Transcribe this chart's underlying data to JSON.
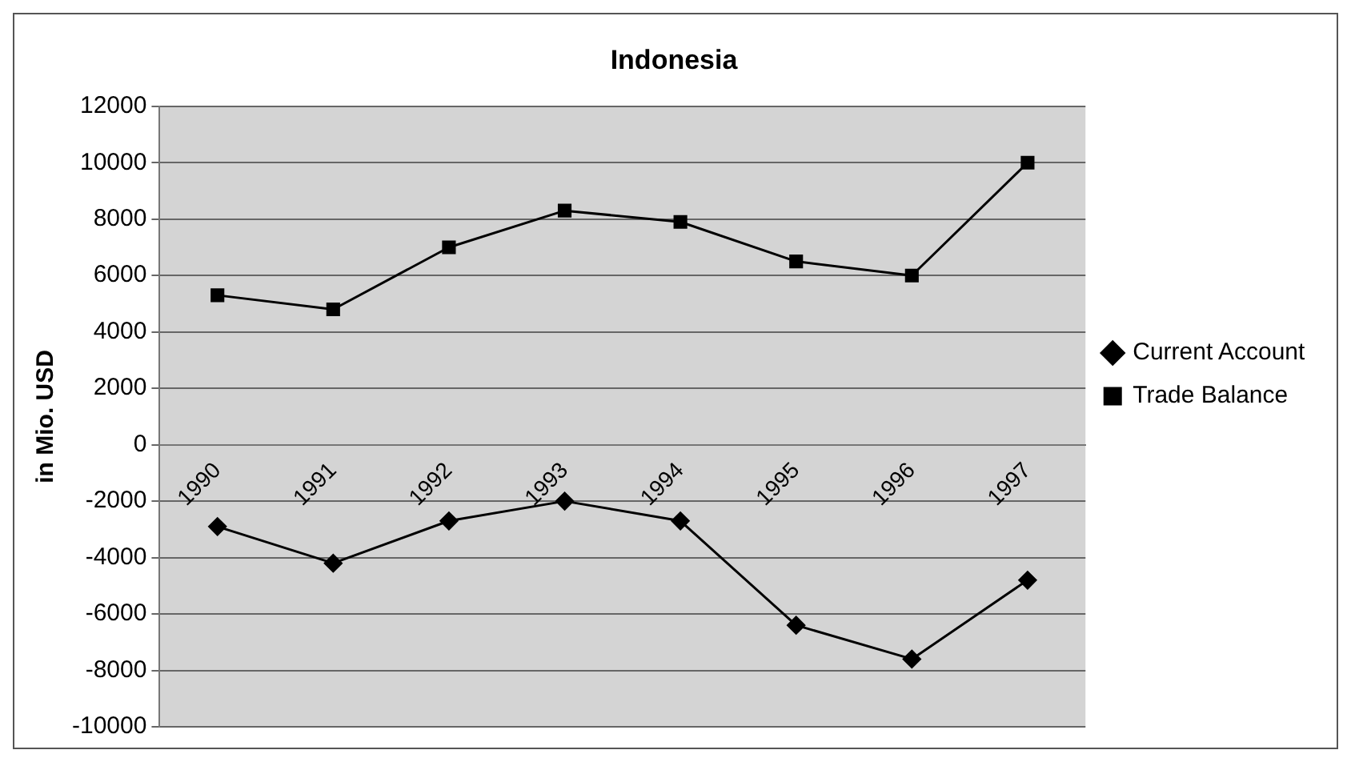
{
  "chart_data": {
    "type": "line",
    "title": "Indonesia",
    "ylabel": "in Mio. USD",
    "categories": [
      "1990",
      "1991",
      "1992",
      "1993",
      "1994",
      "1995",
      "1996",
      "1997"
    ],
    "series": [
      {
        "name": "Current Account",
        "color": "#000000",
        "marker": "diamond",
        "values": [
          -2900,
          -4200,
          -2700,
          -2000,
          -2700,
          -6400,
          -7600,
          -4800
        ]
      },
      {
        "name": "Trade Balance",
        "color": "#000000",
        "marker": "square",
        "values": [
          5300,
          4800,
          7000,
          8300,
          7900,
          6500,
          6000,
          10000
        ]
      }
    ],
    "ylim": [
      -10000,
      12000
    ],
    "yticks": [
      -10000,
      -8000,
      -6000,
      -4000,
      -2000,
      0,
      2000,
      4000,
      6000,
      8000,
      10000,
      12000
    ],
    "grid": "y",
    "legend": "right",
    "line_style": "solid"
  }
}
